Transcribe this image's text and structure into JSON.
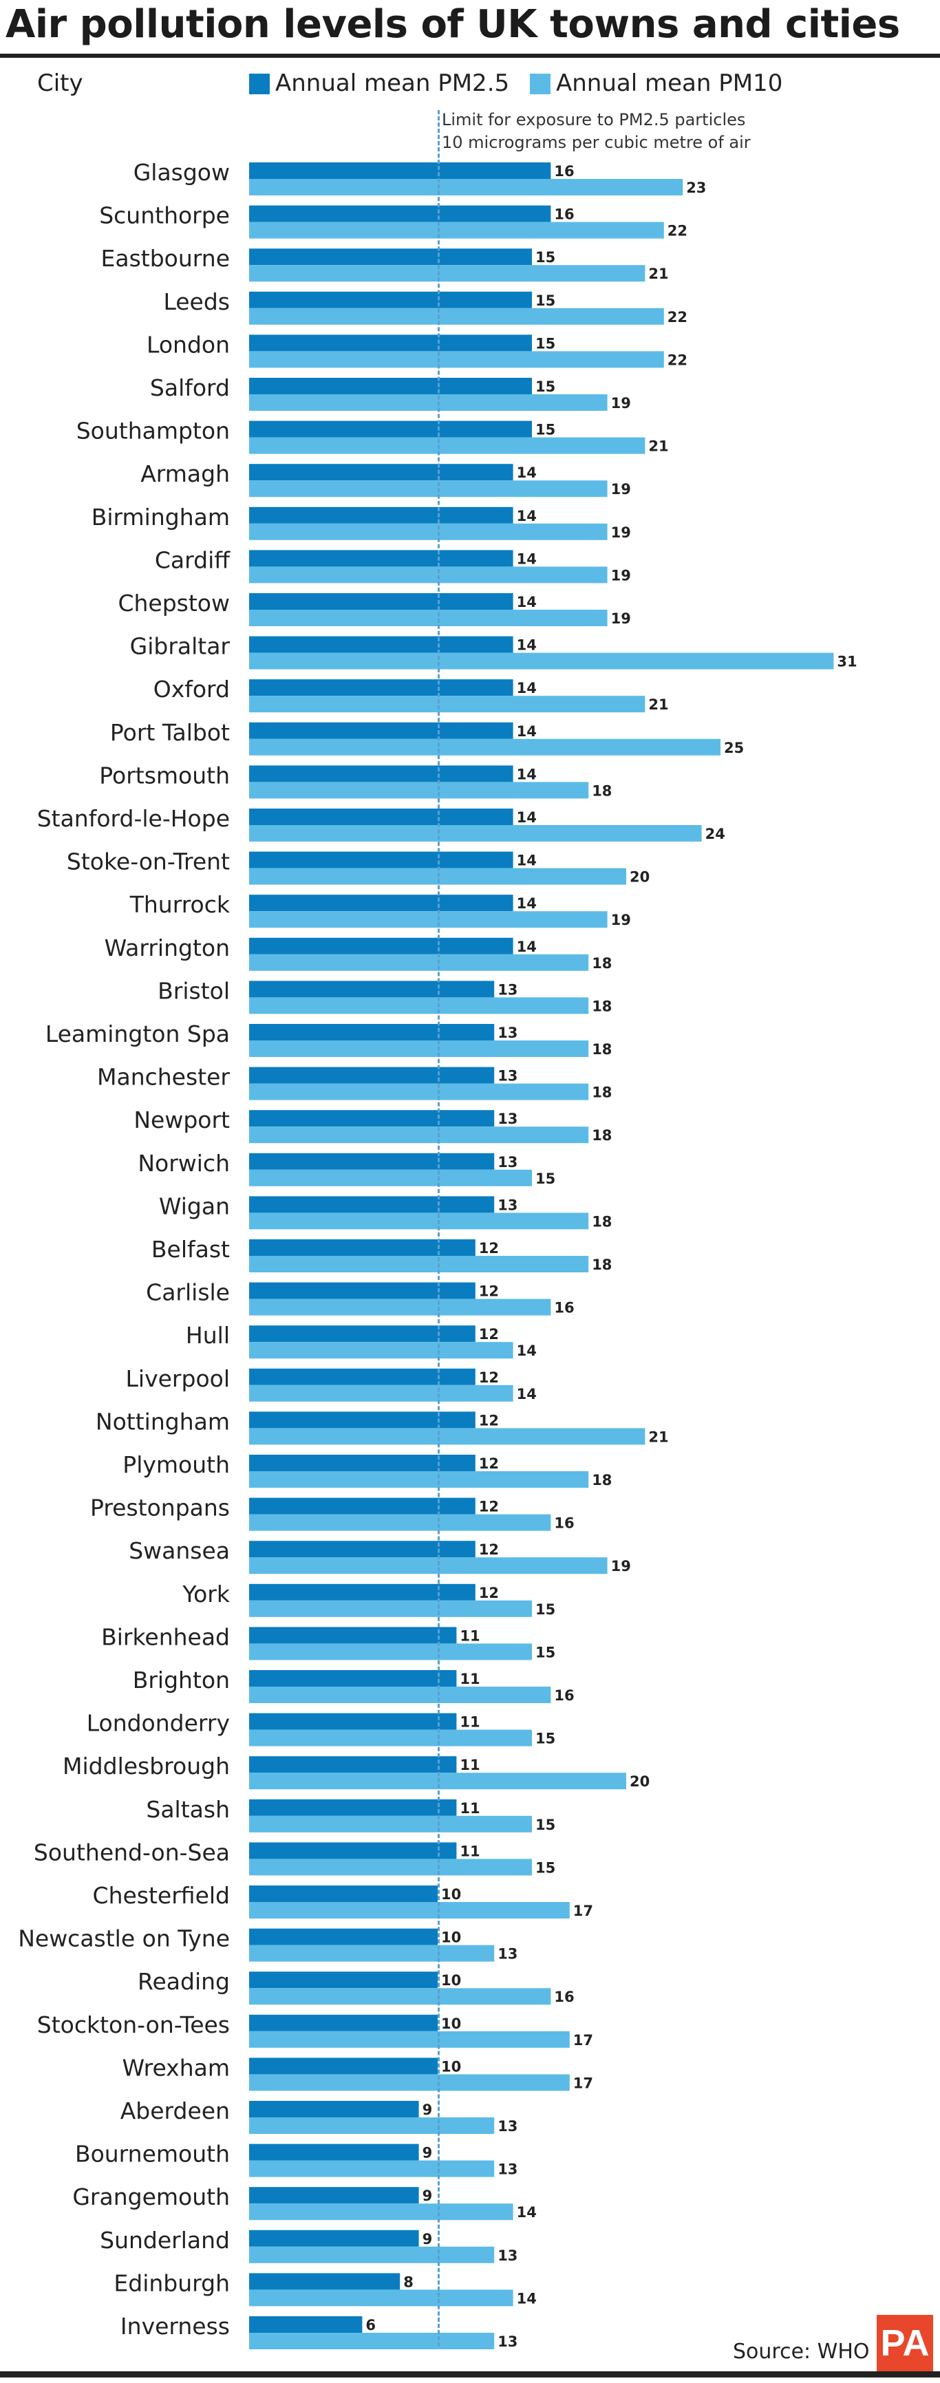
{
  "chart_data": {
    "type": "bar",
    "orientation": "horizontal",
    "title": "Air pollution levels of UK towns and cities",
    "category_header": "City",
    "categories": [
      "Glasgow",
      "Scunthorpe",
      "Eastbourne",
      "Leeds",
      "London",
      "Salford",
      "Southampton",
      "Armagh",
      "Birmingham",
      "Cardiff",
      "Chepstow",
      "Gibraltar",
      "Oxford",
      "Port Talbot",
      "Portsmouth",
      "Stanford-le-Hope",
      "Stoke-on-Trent",
      "Thurrock",
      "Warrington",
      "Bristol",
      "Leamington Spa",
      "Manchester",
      "Newport",
      "Norwich",
      "Wigan",
      "Belfast",
      "Carlisle",
      "Hull",
      "Liverpool",
      "Nottingham",
      "Plymouth",
      "Prestonpans",
      "Swansea",
      "York",
      "Birkenhead",
      "Brighton",
      "Londonderry",
      "Middlesbrough",
      "Saltash",
      "Southend-on-Sea",
      "Chesterfield",
      "Newcastle on Tyne",
      "Reading",
      "Stockton-on-Tees",
      "Wrexham",
      "Aberdeen",
      "Bournemouth",
      "Grangemouth",
      "Sunderland",
      "Edinburgh",
      "Inverness"
    ],
    "series": [
      {
        "name": "Annual mean PM2.5",
        "color": "#0a7dc1",
        "values": [
          16,
          16,
          15,
          15,
          15,
          15,
          15,
          14,
          14,
          14,
          14,
          14,
          14,
          14,
          14,
          14,
          14,
          14,
          14,
          13,
          13,
          13,
          13,
          13,
          13,
          12,
          12,
          12,
          12,
          12,
          12,
          12,
          12,
          12,
          11,
          11,
          11,
          11,
          11,
          11,
          10,
          10,
          10,
          10,
          10,
          9,
          9,
          9,
          9,
          8,
          6
        ]
      },
      {
        "name": "Annual mean PM10",
        "color": "#5bbbe6",
        "values": [
          23,
          22,
          21,
          22,
          22,
          19,
          21,
          19,
          19,
          19,
          19,
          31,
          21,
          25,
          18,
          24,
          20,
          19,
          18,
          18,
          18,
          18,
          18,
          15,
          18,
          18,
          16,
          14,
          14,
          21,
          18,
          16,
          19,
          15,
          15,
          16,
          15,
          20,
          15,
          15,
          17,
          13,
          16,
          17,
          17,
          13,
          13,
          14,
          13,
          14,
          13
        ]
      }
    ],
    "reference_line": {
      "value": 10,
      "label_lines": [
        "Limit for exposure to PM2.5 particles",
        "10 micrograms per cubic metre of air"
      ]
    },
    "grid": false,
    "legend_position": "top"
  },
  "source": "Source: WHO",
  "logo_text": "PA"
}
